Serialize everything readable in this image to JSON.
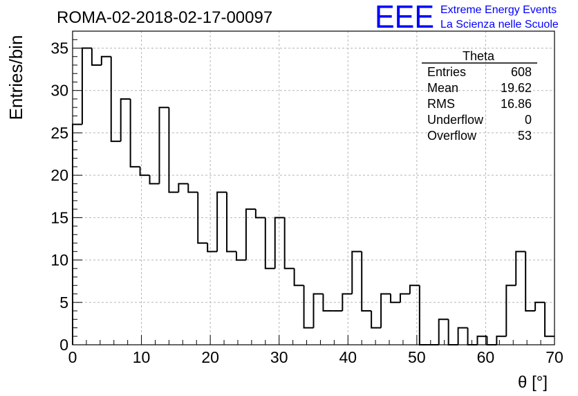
{
  "logo": {
    "mark": "EEE",
    "line1": "Extreme Energy Events",
    "line2": "La Scienza nelle Scuole",
    "color": "#0000ff"
  },
  "stats": {
    "title": "Theta",
    "rows": [
      {
        "label": "Entries",
        "value": "608"
      },
      {
        "label": "Mean",
        "value": "19.62"
      },
      {
        "label": "RMS",
        "value": "16.86"
      },
      {
        "label": "Underflow",
        "value": "0"
      },
      {
        "label": "Overflow",
        "value": "53"
      }
    ]
  },
  "chart_data": {
    "type": "bar",
    "title": "ROMA-02-2018-02-17-00097",
    "xlabel": "θ [°]",
    "ylabel": "Entries/bin",
    "xlim": [
      0,
      70
    ],
    "ylim": [
      0,
      37
    ],
    "xticks": [
      0,
      10,
      20,
      30,
      40,
      50,
      60,
      70
    ],
    "yticks": [
      0,
      5,
      10,
      15,
      20,
      25,
      30,
      35
    ],
    "grid": true,
    "bin_width": 1.4,
    "bin_start": 0,
    "values": [
      26,
      35,
      33,
      34,
      24,
      29,
      21,
      20,
      19,
      28,
      18,
      19,
      18,
      12,
      11,
      18,
      11,
      10,
      16,
      15,
      9,
      15,
      9,
      7,
      2,
      6,
      4,
      4,
      6,
      11,
      4,
      2,
      6,
      5,
      6,
      7,
      0,
      0,
      3,
      0,
      2,
      0,
      1,
      0,
      1,
      7,
      11,
      4,
      5,
      1
    ],
    "line_color": "#000000"
  }
}
